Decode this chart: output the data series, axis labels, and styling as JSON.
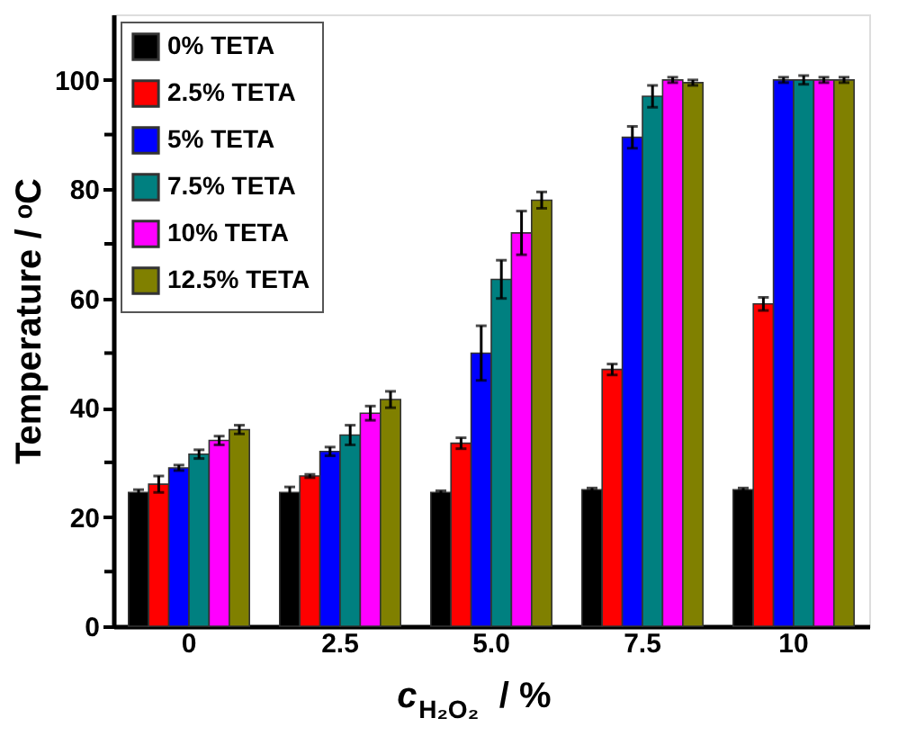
{
  "chart_data": {
    "type": "bar",
    "xlabel": "c$_{H₂O₂}$ / %",
    "ylabel": "Temperature / ᵒC",
    "categories": [
      "0",
      "2.5",
      "5.0",
      "7.5",
      "10"
    ],
    "ylim": [
      0,
      112
    ],
    "yticks": [
      0,
      {
        "value": 10,
        "label": null
      },
      20,
      {
        "value": 30,
        "label": null
      },
      40,
      {
        "value": 50,
        "label": null
      },
      60,
      {
        "value": 70,
        "label": null
      },
      80,
      {
        "value": 90,
        "label": null
      },
      100
    ],
    "grid": false,
    "legend": "top left",
    "series": [
      {
        "name": "0% TETA",
        "color": "#000000",
        "values": [
          24.5,
          24.5,
          24.5,
          25,
          25
        ],
        "errors": [
          0.5,
          1,
          0.3,
          0.3,
          0.3
        ]
      },
      {
        "name": "2.5% TETA",
        "color": "#ff0000",
        "values": [
          26,
          27.5,
          33.5,
          47,
          59
        ],
        "errors": [
          1.5,
          0.3,
          1,
          1,
          1.2
        ]
      },
      {
        "name": "5% TETA",
        "color": "#0000ff",
        "values": [
          29,
          32,
          50,
          89.5,
          100
        ],
        "errors": [
          0.5,
          0.8,
          5,
          2,
          0.5
        ]
      },
      {
        "name": "7.5% TETA",
        "color": "#008080",
        "values": [
          31.5,
          35,
          63.5,
          97,
          100
        ],
        "errors": [
          0.8,
          1.8,
          3.5,
          2,
          0.8
        ]
      },
      {
        "name": "10% TETA",
        "color": "#ff00ff",
        "values": [
          34,
          39,
          72,
          100,
          100
        ],
        "errors": [
          0.8,
          1.3,
          4,
          0.5,
          0.5
        ]
      },
      {
        "name": "12.5% TETA",
        "color": "#808000",
        "values": [
          36,
          41.5,
          78,
          99.5,
          100
        ],
        "errors": [
          0.8,
          1.5,
          1.5,
          0.5,
          0.5
        ]
      }
    ]
  }
}
